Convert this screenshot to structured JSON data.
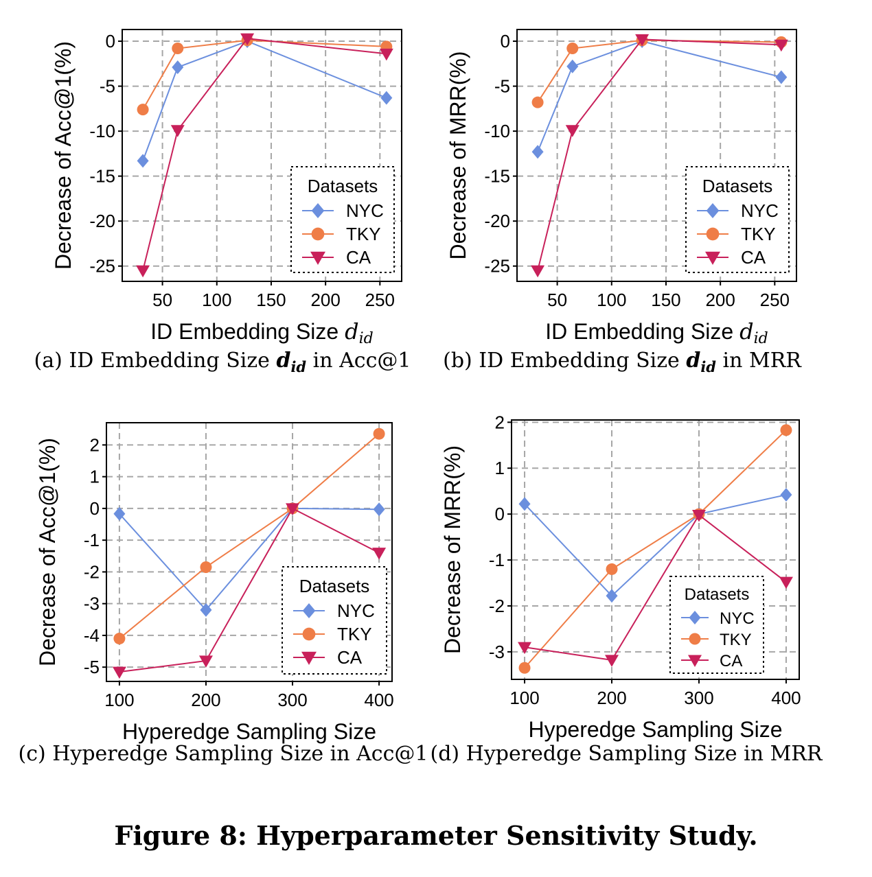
{
  "figure_caption": "Figure 8: Hyperparameter Sensitivity Study.",
  "colors": {
    "NYC": "#6b8fde",
    "TKY": "#ef7d47",
    "CA": "#c8205a",
    "grid": "#a6a6a6",
    "axis": "#000000"
  },
  "chart_data": [
    {
      "id": "a",
      "type": "line",
      "caption_tag": "(a)",
      "caption_text": "ID Embedding Size d_id in Acc@1",
      "ylabel": "Decrease of Acc@1(%)",
      "xlabel": "ID Embedding Size d_id",
      "xticks": [
        50,
        100,
        150,
        200,
        250
      ],
      "yticks": [
        0,
        -5,
        -10,
        -15,
        -20,
        -25
      ],
      "xlim": [
        13,
        270
      ],
      "ylim": [
        -26.7,
        1.3
      ],
      "grid": true,
      "legend_title": "Datasets",
      "legend_position": "lower-right",
      "x": [
        32,
        64,
        128,
        256
      ],
      "series": [
        {
          "name": "NYC",
          "marker": "diamond",
          "values": [
            -13.3,
            -2.9,
            0.0,
            -6.3
          ]
        },
        {
          "name": "TKY",
          "marker": "circle",
          "values": [
            -7.6,
            -0.8,
            0.1,
            -0.6
          ]
        },
        {
          "name": "CA",
          "marker": "triangle-down",
          "values": [
            -25.5,
            -9.9,
            0.3,
            -1.4
          ]
        }
      ]
    },
    {
      "id": "b",
      "type": "line",
      "caption_tag": "(b)",
      "caption_text": "ID Embedding Size d_id in MRR",
      "ylabel": "Decrease of MRR(%)",
      "xlabel": "ID Embedding Size d_id",
      "xticks": [
        50,
        100,
        150,
        200,
        250
      ],
      "yticks": [
        0,
        -5,
        -10,
        -15,
        -20,
        -25
      ],
      "xlim": [
        13,
        270
      ],
      "ylim": [
        -26.7,
        1.3
      ],
      "grid": true,
      "legend_title": "Datasets",
      "legend_position": "lower-right",
      "x": [
        32,
        64,
        128,
        256
      ],
      "series": [
        {
          "name": "NYC",
          "marker": "diamond",
          "values": [
            -12.3,
            -2.8,
            0.0,
            -4.0
          ]
        },
        {
          "name": "TKY",
          "marker": "circle",
          "values": [
            -6.8,
            -0.8,
            0.1,
            -0.1
          ]
        },
        {
          "name": "CA",
          "marker": "triangle-down",
          "values": [
            -25.5,
            -9.9,
            0.2,
            -0.4
          ]
        }
      ]
    },
    {
      "id": "c",
      "type": "line",
      "caption_tag": "(c)",
      "caption_text": "Hyperedge Sampling Size in Acc@1",
      "ylabel": "Decrease of Acc@1(%)",
      "xlabel": "Hyperedge Sampling Size",
      "xticks": [
        100,
        200,
        300,
        400
      ],
      "yticks": [
        2,
        1,
        0,
        -1,
        -2,
        -3,
        -4,
        -5
      ],
      "xlim": [
        85,
        415
      ],
      "ylim": [
        -5.45,
        2.7
      ],
      "grid": true,
      "legend_title": "Datasets",
      "legend_position": "lower-right",
      "x": [
        100,
        200,
        300,
        400
      ],
      "series": [
        {
          "name": "NYC",
          "marker": "diamond",
          "values": [
            -0.17,
            -3.2,
            0.0,
            -0.03
          ]
        },
        {
          "name": "TKY",
          "marker": "circle",
          "values": [
            -4.1,
            -1.85,
            0.0,
            2.35
          ]
        },
        {
          "name": "CA",
          "marker": "triangle-down",
          "values": [
            -5.15,
            -4.8,
            0.0,
            -1.4
          ]
        }
      ]
    },
    {
      "id": "d",
      "type": "line",
      "caption_tag": "(d)",
      "caption_text": "Hyperedge Sampling Size in MRR",
      "ylabel": "Decrease of MRR(%)",
      "xlabel": "Hyperedge Sampling Size",
      "xticks": [
        100,
        200,
        300,
        400
      ],
      "yticks": [
        2,
        1,
        0,
        -1,
        -2,
        -3
      ],
      "xlim": [
        85,
        415
      ],
      "ylim": [
        -3.6,
        2.05
      ],
      "grid": true,
      "legend_title": "Datasets",
      "legend_position": "lower-right",
      "x": [
        100,
        200,
        300,
        400
      ],
      "series": [
        {
          "name": "NYC",
          "marker": "diamond",
          "values": [
            0.22,
            -1.78,
            0.0,
            0.42
          ]
        },
        {
          "name": "TKY",
          "marker": "circle",
          "values": [
            -3.35,
            -1.2,
            0.0,
            1.83
          ]
        },
        {
          "name": "CA",
          "marker": "triangle-down",
          "values": [
            -2.9,
            -3.18,
            -0.02,
            -1.48
          ]
        }
      ]
    }
  ]
}
